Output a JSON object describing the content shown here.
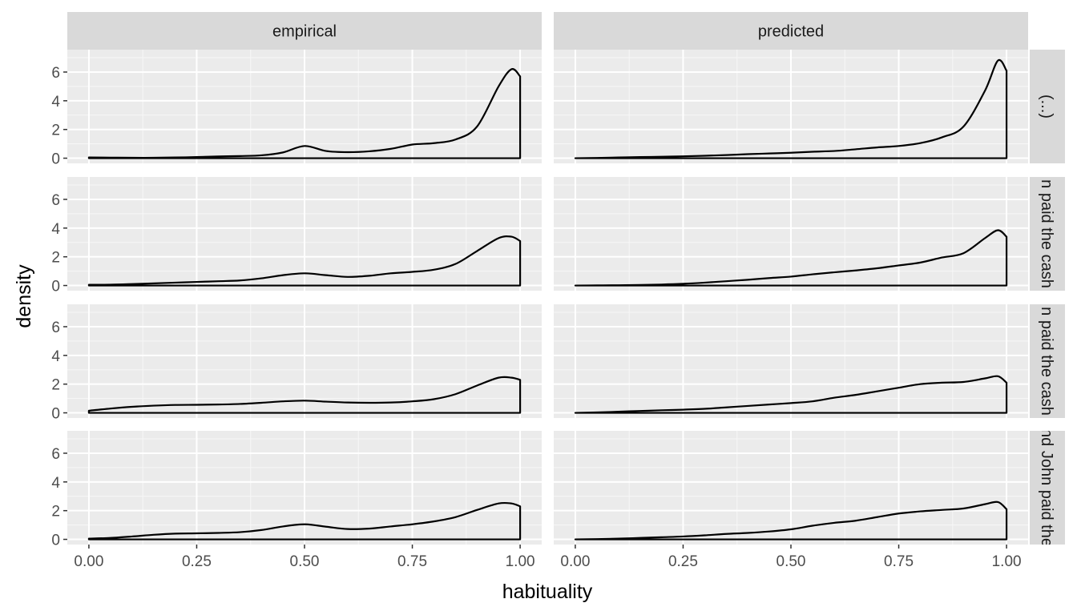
{
  "chart_data": {
    "type": "area",
    "xlabel": "habituality",
    "ylabel": "density",
    "xlim": [
      0,
      1
    ],
    "ylim": [
      0,
      7.2
    ],
    "x_ticks": [
      0,
      0.25,
      0.5,
      0.75,
      1
    ],
    "x_tick_labels": [
      "0.00",
      "0.25",
      "0.50",
      "0.75",
      "1.00"
    ],
    "y_ticks": [
      0,
      2,
      4,
      6
    ],
    "y_tick_labels": [
      "0",
      "2",
      "4",
      "6"
    ],
    "grid": true,
    "columns": [
      "empirical",
      "predicted"
    ],
    "rows": [
      "(...)",
      "n paid the cash",
      "n paid the cash",
      "nd John paid the"
    ],
    "x": [
      0,
      0.05,
      0.1,
      0.15,
      0.2,
      0.25,
      0.3,
      0.35,
      0.4,
      0.45,
      0.5,
      0.55,
      0.6,
      0.65,
      0.7,
      0.75,
      0.8,
      0.85,
      0.9,
      0.95,
      0.98,
      1.0
    ],
    "panels": [
      {
        "row": 0,
        "col": 0,
        "values": [
          0.05,
          0.04,
          0.03,
          0.03,
          0.05,
          0.08,
          0.12,
          0.15,
          0.2,
          0.4,
          0.85,
          0.5,
          0.42,
          0.48,
          0.65,
          0.95,
          1.05,
          1.3,
          2.2,
          5.0,
          6.2,
          5.7
        ]
      },
      {
        "row": 0,
        "col": 1,
        "values": [
          0.0,
          0.02,
          0.05,
          0.08,
          0.1,
          0.13,
          0.17,
          0.22,
          0.28,
          0.33,
          0.38,
          0.45,
          0.5,
          0.62,
          0.75,
          0.85,
          1.05,
          1.45,
          2.2,
          4.7,
          6.8,
          6.1
        ]
      },
      {
        "row": 1,
        "col": 0,
        "values": [
          0.05,
          0.06,
          0.1,
          0.15,
          0.2,
          0.25,
          0.3,
          0.35,
          0.5,
          0.72,
          0.85,
          0.72,
          0.6,
          0.68,
          0.85,
          0.95,
          1.1,
          1.5,
          2.4,
          3.3,
          3.4,
          3.1
        ]
      },
      {
        "row": 1,
        "col": 1,
        "values": [
          0.0,
          0.01,
          0.02,
          0.04,
          0.07,
          0.12,
          0.2,
          0.3,
          0.4,
          0.52,
          0.62,
          0.78,
          0.92,
          1.05,
          1.2,
          1.4,
          1.6,
          1.95,
          2.25,
          3.3,
          3.85,
          3.4
        ]
      },
      {
        "row": 2,
        "col": 0,
        "values": [
          0.15,
          0.3,
          0.42,
          0.5,
          0.55,
          0.56,
          0.58,
          0.62,
          0.7,
          0.8,
          0.85,
          0.78,
          0.72,
          0.7,
          0.72,
          0.8,
          0.95,
          1.3,
          1.9,
          2.45,
          2.45,
          2.3
        ]
      },
      {
        "row": 2,
        "col": 1,
        "values": [
          0.0,
          0.03,
          0.08,
          0.13,
          0.18,
          0.22,
          0.28,
          0.38,
          0.48,
          0.58,
          0.68,
          0.8,
          1.05,
          1.25,
          1.5,
          1.75,
          2.0,
          2.1,
          2.15,
          2.4,
          2.55,
          2.1
        ]
      },
      {
        "row": 3,
        "col": 0,
        "values": [
          0.05,
          0.1,
          0.2,
          0.32,
          0.4,
          0.42,
          0.45,
          0.5,
          0.65,
          0.9,
          1.05,
          0.88,
          0.72,
          0.75,
          0.9,
          1.05,
          1.25,
          1.55,
          2.05,
          2.5,
          2.5,
          2.3
        ]
      },
      {
        "row": 3,
        "col": 1,
        "values": [
          0.0,
          0.02,
          0.05,
          0.1,
          0.15,
          0.2,
          0.28,
          0.38,
          0.45,
          0.55,
          0.7,
          0.95,
          1.15,
          1.3,
          1.55,
          1.8,
          1.95,
          2.05,
          2.15,
          2.45,
          2.6,
          2.1
        ]
      }
    ]
  }
}
